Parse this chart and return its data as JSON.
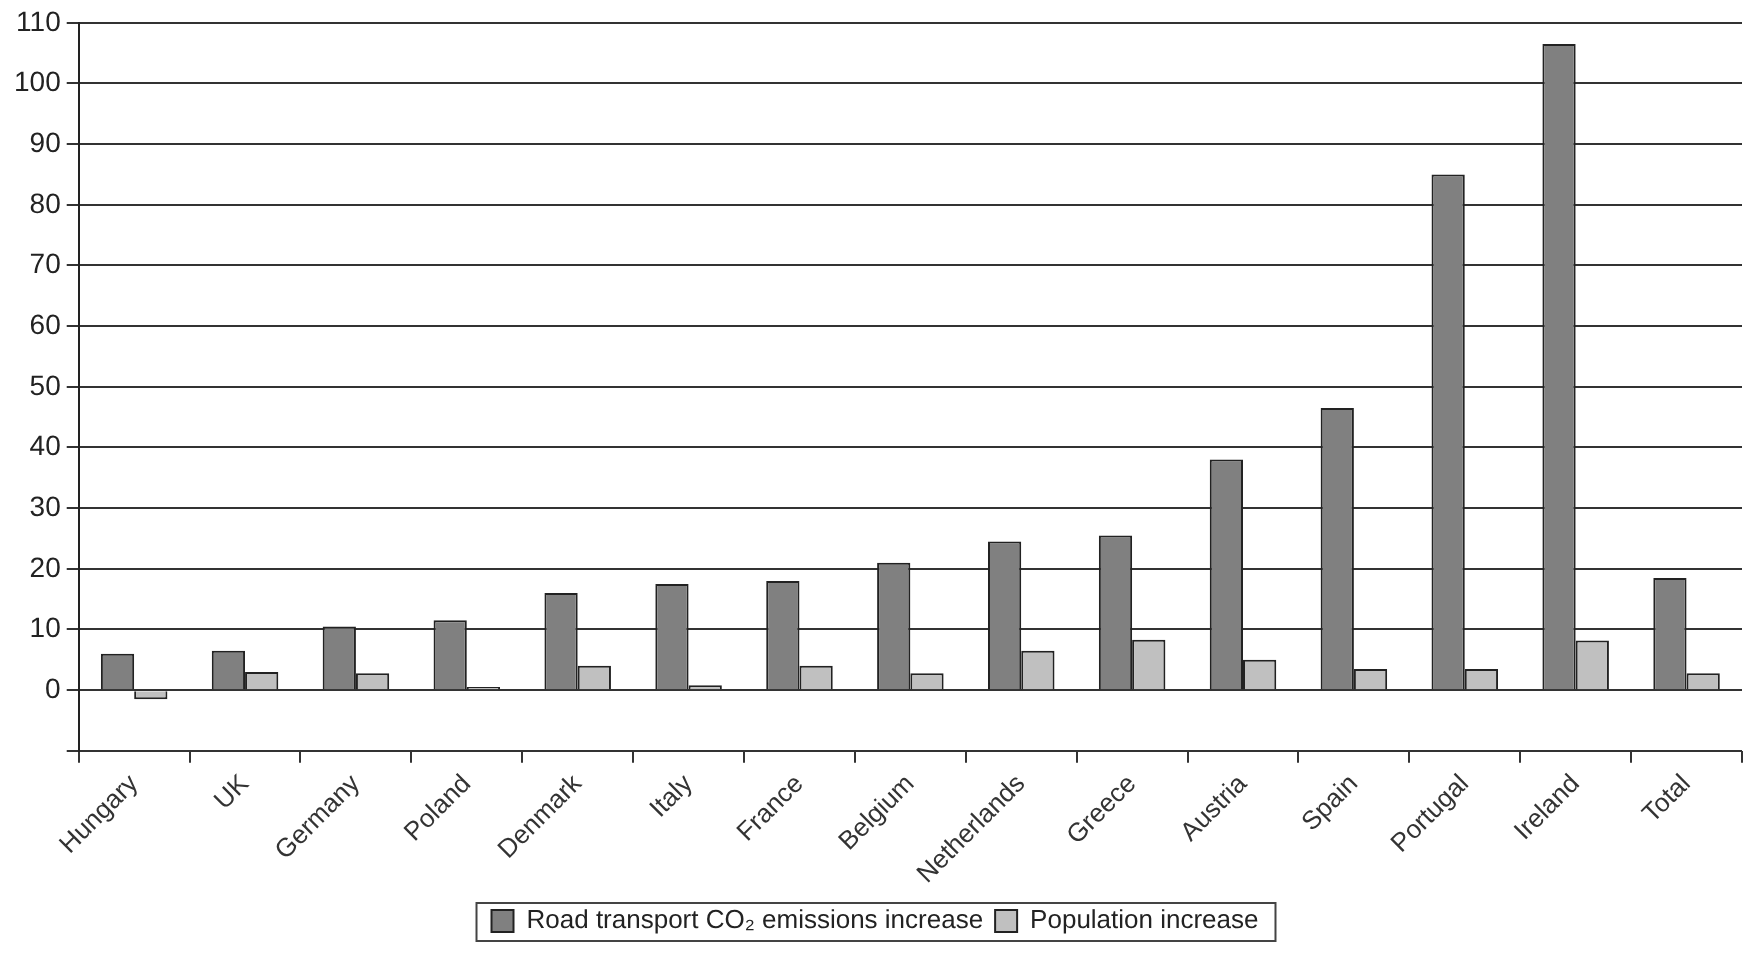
{
  "chart_data": {
    "type": "bar",
    "categories": [
      "Hungary",
      "UK",
      "Germany",
      "Poland",
      "Denmark",
      "Italy",
      "France",
      "Belgium",
      "Netherlands",
      "Greece",
      "Austria",
      "Spain",
      "Portugal",
      "Ireland",
      "Total"
    ],
    "series": [
      {
        "name": "Road transport CO₂ emissions increase",
        "color": "#808080",
        "values": [
          6,
          6.5,
          10.5,
          11.5,
          16,
          17.5,
          18,
          21,
          24.5,
          25.5,
          38,
          46.5,
          85,
          106.5,
          18.5
        ]
      },
      {
        "name": "Population increase",
        "color": "#c0c0c0",
        "values": [
          -1.5,
          3,
          2.8,
          0.5,
          4,
          0.8,
          4,
          2.8,
          6.5,
          8.3,
          5,
          3.5,
          3.5,
          8.2,
          2.8
        ]
      }
    ],
    "ylim": [
      -10,
      110
    ],
    "yticks": [
      {
        "value": -10,
        "label": null
      },
      0,
      10,
      20,
      30,
      40,
      50,
      60,
      70,
      80,
      90,
      100,
      110
    ],
    "grid": "y",
    "legend": "bottom"
  }
}
